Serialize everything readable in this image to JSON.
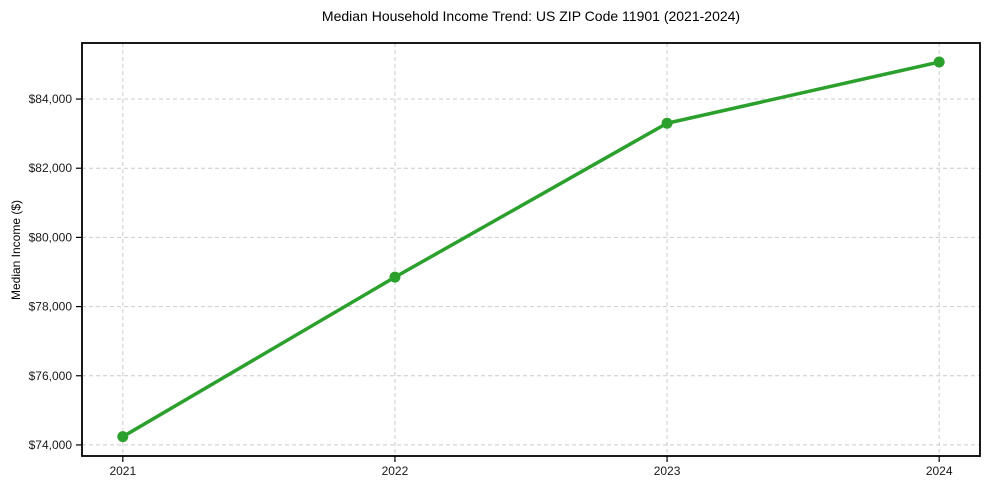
{
  "chart_data": {
    "type": "line",
    "title": "Median Household Income Trend: US ZIP Code 11901 (2021-2024)",
    "xlabel": "",
    "ylabel": "Median Income ($)",
    "x": [
      2021,
      2022,
      2023,
      2024
    ],
    "x_tick_labels": [
      "2021",
      "2022",
      "2023",
      "2024"
    ],
    "values": [
      74240,
      78850,
      83300,
      85070
    ],
    "yticks": [
      74000,
      76000,
      78000,
      80000,
      82000,
      84000
    ],
    "y_tick_labels": [
      "$74,000",
      "$76,000",
      "$78,000",
      "$80,000",
      "$82,000",
      "$84,000"
    ],
    "xlim": [
      2020.85,
      2024.15
    ],
    "ylim": [
      73680,
      85620
    ],
    "grid": true,
    "grid_style": "dashed",
    "legend": "none",
    "line_color": "#2ca02c",
    "marker_color": "#2ca02c",
    "grid_color": "#cccccc",
    "spine_color": "#000000",
    "tick_label_color": "#1a1a1a",
    "background_color": "#ffffff"
  }
}
